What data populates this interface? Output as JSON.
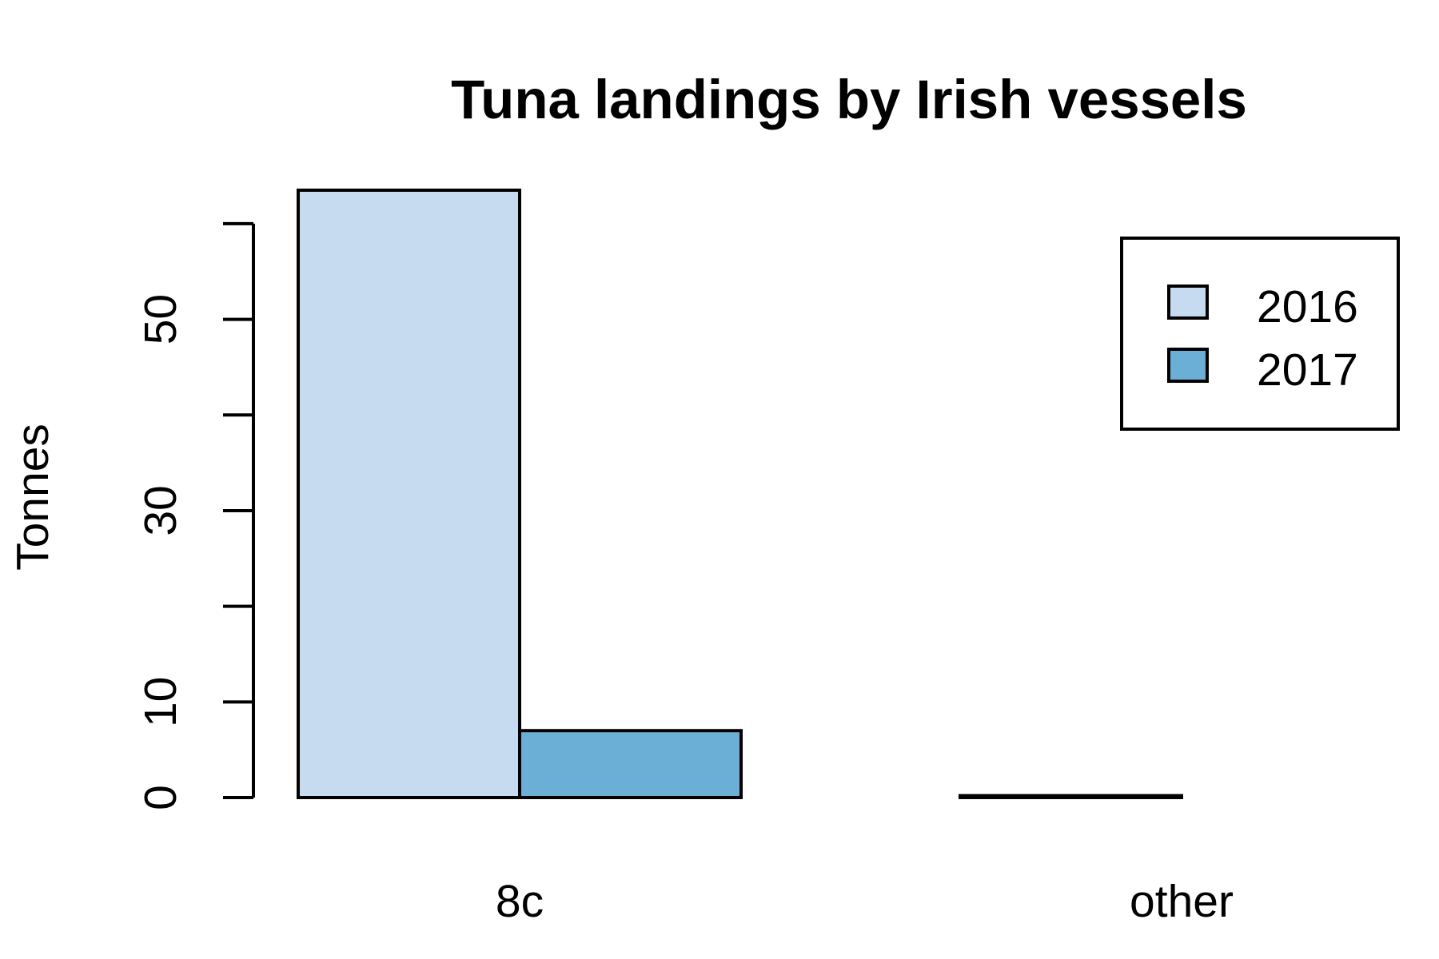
{
  "chart_data": {
    "type": "bar",
    "title": "Tuna landings by Irish vessels",
    "xlabel": "",
    "ylabel": "Tonnes",
    "categories": [
      "8c",
      "other"
    ],
    "series": [
      {
        "name": "2016",
        "color": "#c6dbef",
        "values": [
          63.5,
          0.2
        ]
      },
      {
        "name": "2017",
        "color": "#6baed6",
        "values": [
          7,
          0
        ]
      }
    ],
    "ylim": [
      0,
      63.5
    ],
    "yticks": [
      0,
      10,
      20,
      30,
      40,
      50,
      60
    ],
    "ytick_labels": [
      "0",
      "10",
      "",
      "30",
      "",
      "50",
      ""
    ],
    "legend_position": "top-right",
    "grid": false
  }
}
